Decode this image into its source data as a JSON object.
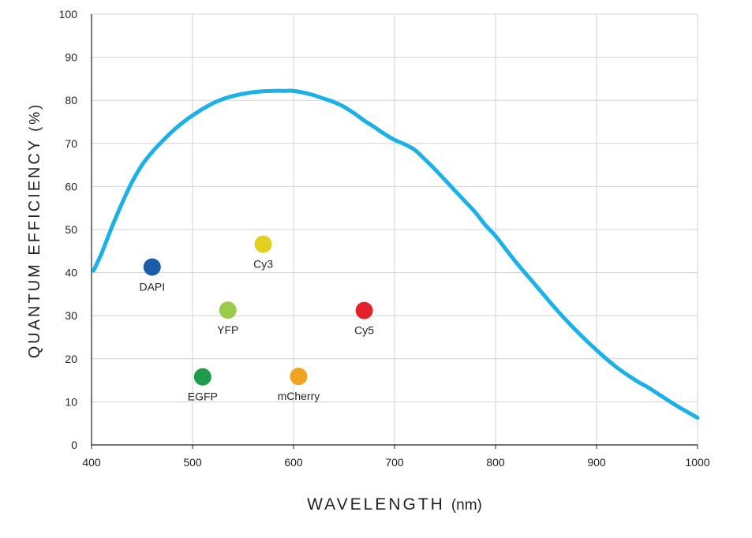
{
  "chart_data": {
    "type": "line",
    "xlabel": "WAVELENGTH",
    "xlabel_unit": "(nm)",
    "ylabel": "QUANTUM EFFICIENCY",
    "ylabel_unit": "(%)",
    "xlim": [
      400,
      1000
    ],
    "ylim": [
      0,
      100
    ],
    "x_ticks": [
      "400",
      "500",
      "600",
      "700",
      "800",
      "900",
      "1000"
    ],
    "y_ticks": [
      "0",
      "10",
      "20",
      "30",
      "40",
      "50",
      "60",
      "70",
      "80",
      "90",
      "100"
    ],
    "grid": true,
    "line_color": "#1ab0e8",
    "series": [
      {
        "x": [
          402,
          410,
          420,
          430,
          440,
          450,
          460,
          470,
          480,
          490,
          500,
          510,
          520,
          530,
          540,
          550,
          560,
          570,
          580,
          590,
          600,
          610,
          620,
          630,
          640,
          650,
          660,
          670,
          680,
          690,
          700,
          710,
          720,
          730,
          740,
          750,
          760,
          770,
          780,
          790,
          800,
          820,
          840,
          860,
          880,
          900,
          920,
          940,
          950,
          960,
          980,
          1000
        ],
        "y": [
          40.5,
          44.5,
          50.5,
          56,
          61,
          65,
          68,
          70.5,
          72.8,
          74.8,
          76.5,
          78,
          79.3,
          80.3,
          81,
          81.5,
          81.9,
          82.1,
          82.2,
          82.2,
          82.2,
          81.8,
          81.2,
          80.4,
          79.6,
          78.5,
          77,
          75.3,
          73.8,
          72.2,
          70.8,
          69.8,
          68.5,
          66.3,
          64,
          61.5,
          59,
          56.5,
          54,
          51,
          48.5,
          42.5,
          37,
          31.5,
          26.5,
          22,
          18,
          14.8,
          13.5,
          12,
          9,
          6.3
        ]
      }
    ],
    "markers": [
      {
        "label": "DAPI",
        "x": 460,
        "y": 41.3,
        "color": "#1a5ca8"
      },
      {
        "label": "Cy3",
        "x": 570,
        "y": 46.6,
        "color": "#e3cf1e"
      },
      {
        "label": "YFP",
        "x": 535,
        "y": 31.3,
        "color": "#99cc4a"
      },
      {
        "label": "Cy5",
        "x": 670,
        "y": 31.2,
        "color": "#e3222b"
      },
      {
        "label": "EGFP",
        "x": 510,
        "y": 15.8,
        "color": "#1f9c49"
      },
      {
        "label": "mCherry",
        "x": 605,
        "y": 15.9,
        "color": "#f0a31f"
      }
    ]
  }
}
